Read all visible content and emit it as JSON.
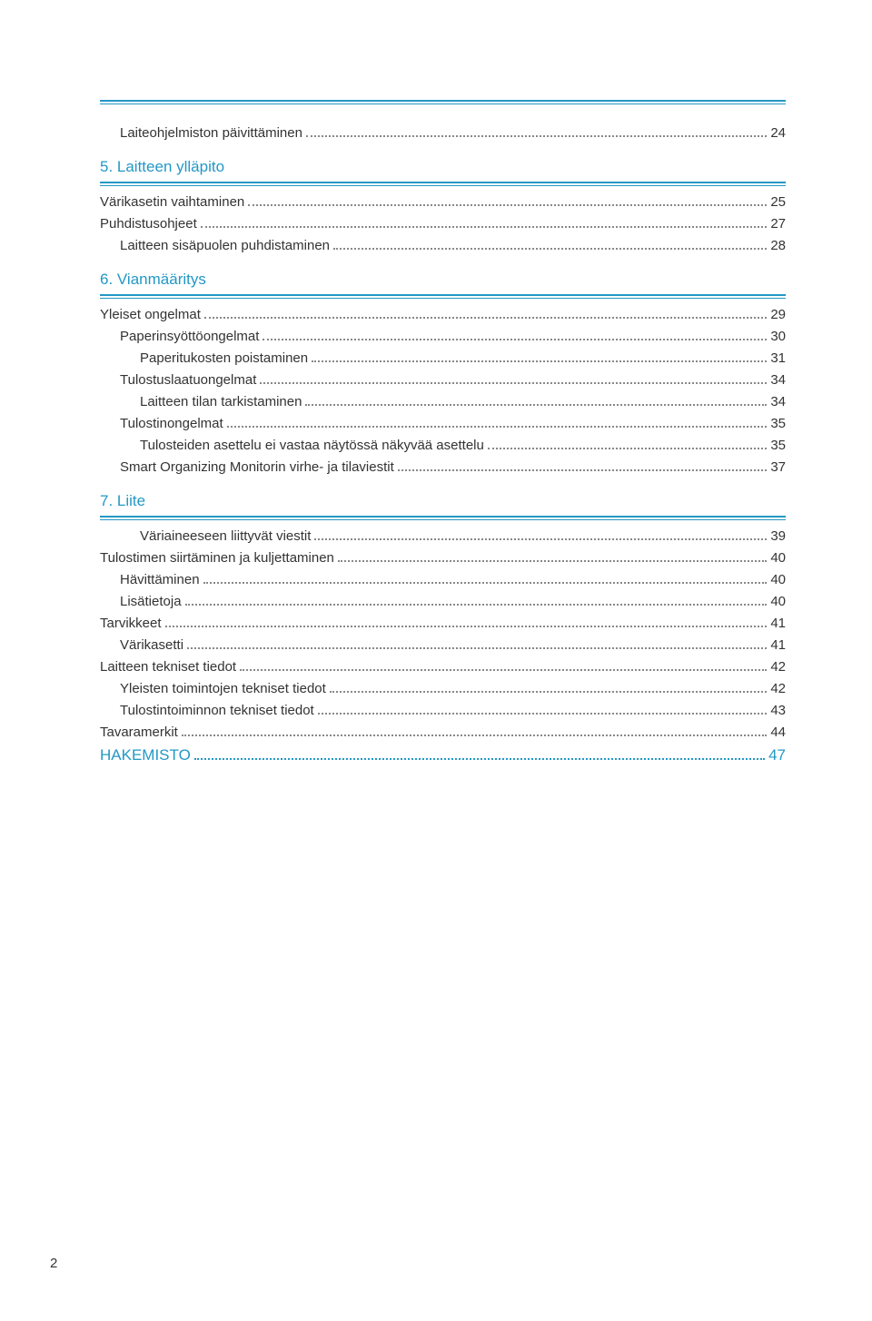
{
  "colors": {
    "accent": "#2398c5",
    "text": "#333333",
    "dots": "#888888",
    "background": "#ffffff"
  },
  "typography": {
    "body_fontsize_pt": 11,
    "heading_fontsize_pt": 13,
    "font_family": "Helvetica Neue, Arial"
  },
  "entries": {
    "e0": {
      "label": "Laiteohjelmiston päivittäminen",
      "page": "24"
    },
    "sec5": {
      "label": "5. Laitteen ylläpito"
    },
    "e1": {
      "label": "Värikasetin vaihtaminen",
      "page": "25"
    },
    "e2": {
      "label": "Puhdistusohjeet",
      "page": "27"
    },
    "e3": {
      "label": "Laitteen sisäpuolen puhdistaminen",
      "page": "28"
    },
    "sec6": {
      "label": "6. Vianmääritys"
    },
    "e4": {
      "label": "Yleiset ongelmat",
      "page": "29"
    },
    "e5": {
      "label": "Paperinsyöttöongelmat",
      "page": "30"
    },
    "e6": {
      "label": "Paperitukosten poistaminen",
      "page": "31"
    },
    "e7": {
      "label": "Tulostuslaatuongelmat",
      "page": "34"
    },
    "e8": {
      "label": "Laitteen tilan tarkistaminen",
      "page": "34"
    },
    "e9": {
      "label": "Tulostinongelmat",
      "page": "35"
    },
    "e10": {
      "label": "Tulosteiden asettelu ei vastaa näytössä näkyvää asettelu",
      "page": "35"
    },
    "e11": {
      "label": "Smart Organizing Monitorin virhe- ja tilaviestit",
      "page": "37"
    },
    "sec7": {
      "label": "7. Liite"
    },
    "e12": {
      "label": "Väriaineeseen liittyvät viestit",
      "page": "39"
    },
    "e13": {
      "label": "Tulostimen siirtäminen ja kuljettaminen",
      "page": "40"
    },
    "e14": {
      "label": "Hävittäminen",
      "page": "40"
    },
    "e15": {
      "label": "Lisätietoja",
      "page": "40"
    },
    "e16": {
      "label": "Tarvikkeet",
      "page": "41"
    },
    "e17": {
      "label": "Värikasetti",
      "page": "41"
    },
    "e18": {
      "label": "Laitteen tekniset tiedot",
      "page": "42"
    },
    "e19": {
      "label": "Yleisten toimintojen tekniset tiedot",
      "page": "42"
    },
    "e20": {
      "label": "Tulostintoiminnon tekniset tiedot",
      "page": "43"
    },
    "e21": {
      "label": "Tavaramerkit",
      "page": "44"
    },
    "index": {
      "label": "HAKEMISTO",
      "page": "47"
    }
  },
  "page_number": "2"
}
